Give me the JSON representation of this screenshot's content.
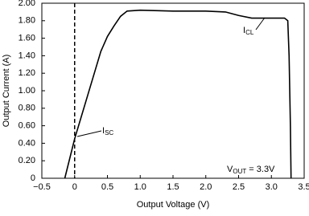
{
  "chart_data": {
    "type": "line",
    "xlabel": "Output Voltage (V)",
    "ylabel": "Output Current (A)",
    "xlim": [
      -0.5,
      3.5
    ],
    "ylim": [
      0,
      2
    ],
    "xticks": [
      {
        "value": -0.5,
        "label": "−0.5"
      },
      0,
      0.5,
      {
        "value": 1,
        "label": "1.0"
      },
      1.5,
      {
        "value": 2,
        "label": "2.0"
      },
      2.5,
      {
        "value": 3,
        "label": "3.0"
      },
      3.5
    ],
    "yticks": [
      0,
      {
        "value": 0.2,
        "label": "0.20"
      },
      {
        "value": 0.4,
        "label": "0.40"
      },
      {
        "value": 0.6,
        "label": "0.60"
      },
      {
        "value": 0.8,
        "label": "0.80"
      },
      {
        "value": 1,
        "label": "1.00"
      },
      {
        "value": 1.2,
        "label": "1.20"
      },
      {
        "value": 1.4,
        "label": "1.40"
      },
      {
        "value": 1.6,
        "label": "1.60"
      },
      {
        "value": 1.8,
        "label": "1.80"
      },
      {
        "value": 2,
        "label": "2.00"
      }
    ],
    "grid": false,
    "reference_x": 0,
    "series": [
      {
        "color": "#000000",
        "x": [
          -0.15,
          0,
          0.2,
          0.4,
          0.5,
          0.6,
          0.7,
          0.8,
          1.0,
          1.5,
          2.0,
          2.3,
          2.5,
          2.7,
          3.0,
          3.2,
          3.25,
          3.27,
          3.29,
          3.3
        ],
        "values": [
          0,
          0.45,
          0.95,
          1.45,
          1.62,
          1.74,
          1.85,
          1.91,
          1.92,
          1.91,
          1.91,
          1.9,
          1.86,
          1.83,
          1.83,
          1.83,
          1.8,
          1.4,
          0.6,
          0
        ]
      }
    ],
    "annotations": [
      {
        "text": "I",
        "sub": "SC"
      },
      {
        "text": "I",
        "sub": "CL"
      },
      {
        "text": "V",
        "sub": "OUT",
        "suffix": " = 3.3V"
      }
    ]
  }
}
